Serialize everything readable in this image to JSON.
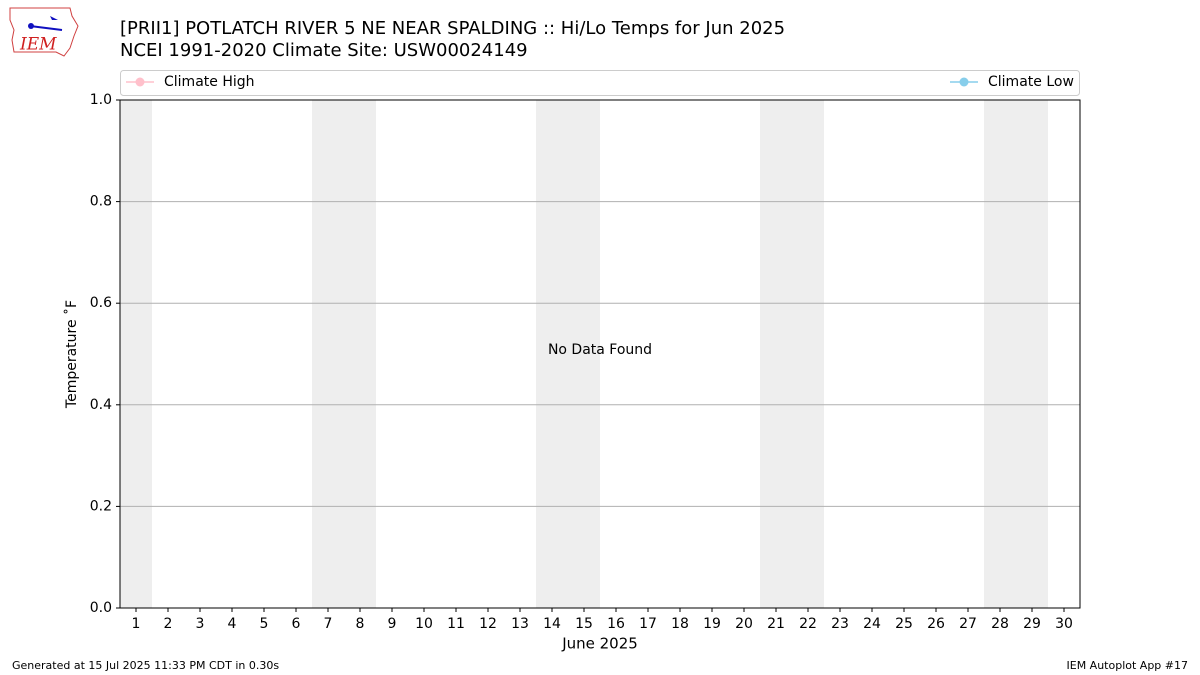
{
  "chart_data": {
    "type": "line",
    "title": "[PRII1] POTLATCH RIVER 5 NE NEAR SPALDING :: Hi/Lo Temps for Jun 2025",
    "subtitle": "NCEI 1991-2020 Climate Site: USW00024149",
    "xlabel": "June 2025",
    "ylabel": "Temperature ˚F",
    "annotation": "No Data Found",
    "series": [
      {
        "name": "Climate High",
        "color": "#ffc0cb"
      },
      {
        "name": "Climate Low",
        "color": "#87ceeb"
      }
    ],
    "xlim": [
      0.5,
      30.5
    ],
    "xticks": [
      1,
      2,
      3,
      4,
      5,
      6,
      7,
      8,
      9,
      10,
      11,
      12,
      13,
      14,
      15,
      16,
      17,
      18,
      19,
      20,
      21,
      22,
      23,
      24,
      25,
      26,
      27,
      28,
      29,
      30
    ],
    "ylim": [
      0,
      1
    ],
    "yticks": [
      {
        "value": 0,
        "label": "0.0"
      },
      {
        "value": 0.2,
        "label": "0.2"
      },
      {
        "value": 0.4,
        "label": "0.4"
      },
      {
        "value": 0.6,
        "label": "0.6"
      },
      {
        "value": 0.8,
        "label": "0.8"
      },
      {
        "value": 1,
        "label": "1.0"
      }
    ],
    "shaded_spans": [
      [
        0.5,
        1.5
      ],
      [
        6.5,
        8.5
      ],
      [
        13.5,
        15.5
      ],
      [
        20.5,
        22.5
      ],
      [
        27.5,
        29.5
      ]
    ],
    "shade_color": "#eeeeee",
    "grid": true,
    "logo_text": "IEM",
    "footer_left": "Generated at 15 Jul 2025 11:33 PM CDT in 0.30s",
    "footer_right": "IEM Autoplot App #17"
  }
}
